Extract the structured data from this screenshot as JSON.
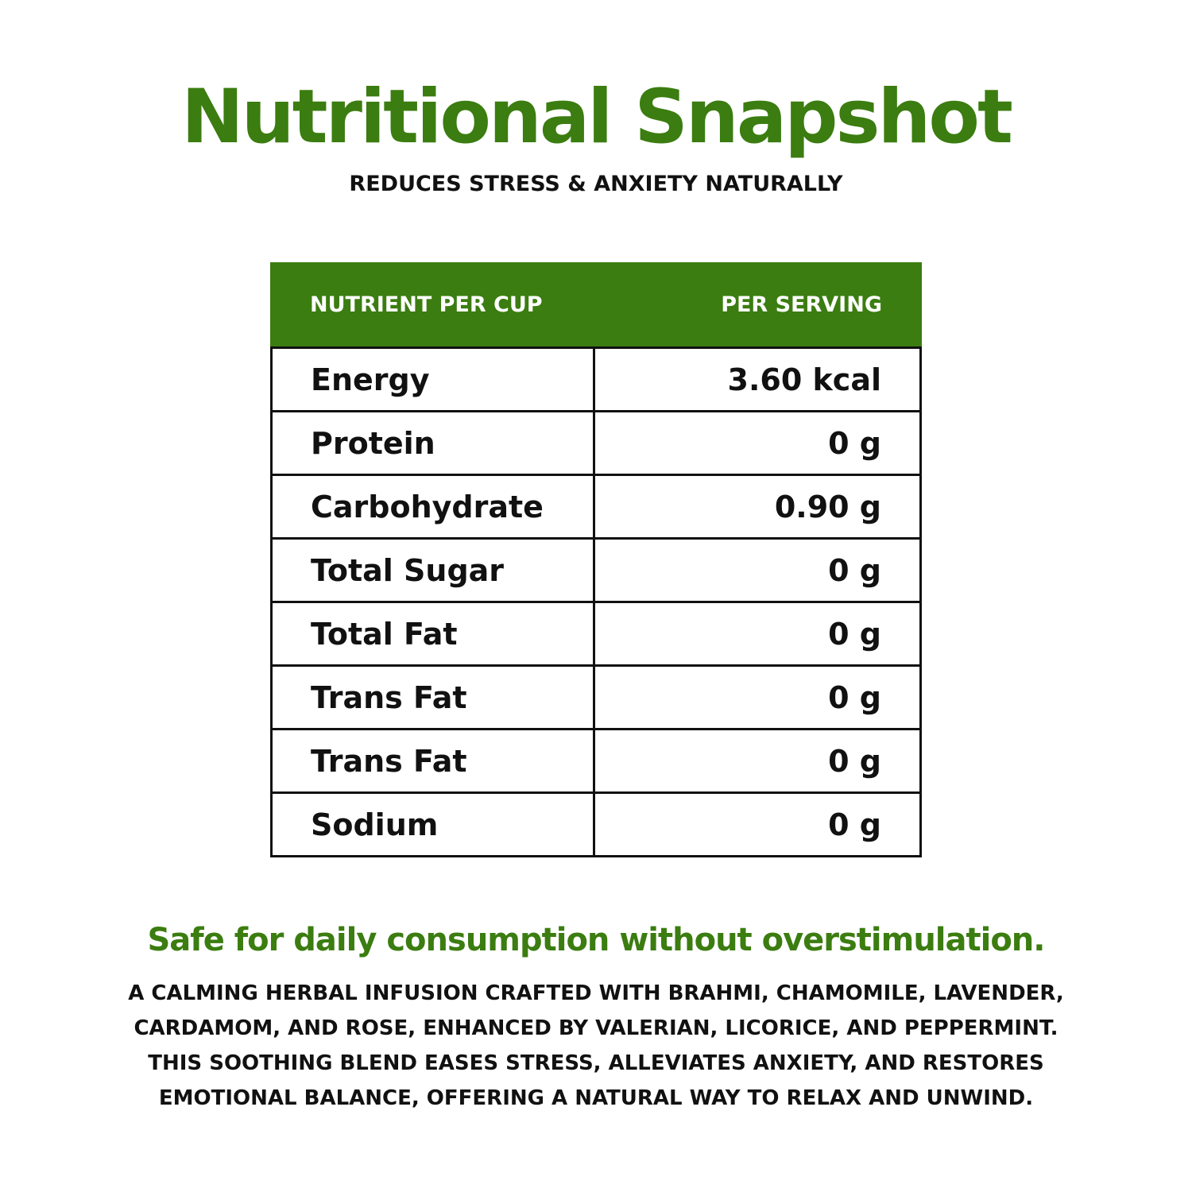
{
  "colors": {
    "accent": "#3b7d10",
    "text": "#111111",
    "background": "#ffffff"
  },
  "title": "Nutritional Snapshot",
  "subtitle": "REDUCES STRESS & ANXIETY NATURALLY",
  "table": {
    "headers": [
      "NUTRIENT PER CUP",
      "PER SERVING"
    ],
    "rows": [
      {
        "name": "Energy",
        "value": "3.60 kcal"
      },
      {
        "name": "Protein",
        "value": "0 g"
      },
      {
        "name": "Carbohydrate",
        "value": "0.90 g"
      },
      {
        "name": "Total Sugar",
        "value": "0 g"
      },
      {
        "name": "Total Fat",
        "value": "0 g"
      },
      {
        "name": "Trans Fat",
        "value": "0 g"
      },
      {
        "name": "Trans Fat",
        "value": "0 g"
      },
      {
        "name": "Sodium",
        "value": "0 g"
      }
    ]
  },
  "tagline": "Safe for daily consumption without overstimulation.",
  "description": [
    "A CALMING HERBAL INFUSION CRAFTED WITH BRAHMI, CHAMOMILE, LAVENDER,",
    "CARDAMOM, AND ROSE, ENHANCED BY VALERIAN, LICORICE, AND PEPPERMINT.",
    "THIS SOOTHING BLEND EASES STRESS, ALLEVIATES ANXIETY, AND RESTORES",
    "EMOTIONAL BALANCE, OFFERING A NATURAL WAY TO RELAX AND UNWIND."
  ]
}
